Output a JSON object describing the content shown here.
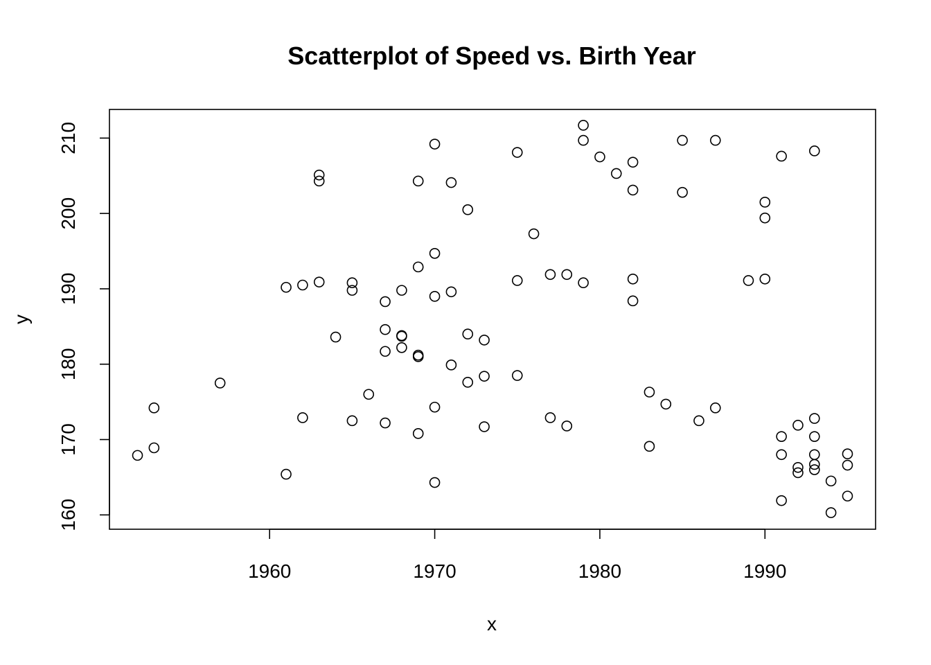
{
  "chart_data": {
    "type": "scatter",
    "title": "Scatterplot of Speed vs. Birth Year",
    "xlabel": "x",
    "ylabel": "y",
    "xlim": [
      1950.3,
      1996.7
    ],
    "ylim": [
      158.1,
      213.8
    ],
    "xticks": [
      1960,
      1970,
      1980,
      1990
    ],
    "yticks": [
      160,
      170,
      180,
      190,
      200,
      210
    ],
    "grid": false,
    "point_shape": "open-circle",
    "points": [
      {
        "x": 1952,
        "y": 167.9
      },
      {
        "x": 1953,
        "y": 174.2
      },
      {
        "x": 1953,
        "y": 168.9
      },
      {
        "x": 1957,
        "y": 177.5
      },
      {
        "x": 1961,
        "y": 190.2
      },
      {
        "x": 1961,
        "y": 165.4
      },
      {
        "x": 1962,
        "y": 190.5
      },
      {
        "x": 1962,
        "y": 172.9
      },
      {
        "x": 1963,
        "y": 205.1
      },
      {
        "x": 1963,
        "y": 204.3
      },
      {
        "x": 1963,
        "y": 190.9
      },
      {
        "x": 1964,
        "y": 183.6
      },
      {
        "x": 1965,
        "y": 190.8
      },
      {
        "x": 1965,
        "y": 189.8
      },
      {
        "x": 1965,
        "y": 172.5
      },
      {
        "x": 1966,
        "y": 176.0
      },
      {
        "x": 1967,
        "y": 188.3
      },
      {
        "x": 1967,
        "y": 184.6
      },
      {
        "x": 1967,
        "y": 181.7
      },
      {
        "x": 1967,
        "y": 172.2
      },
      {
        "x": 1968,
        "y": 189.8
      },
      {
        "x": 1968,
        "y": 183.8
      },
      {
        "x": 1968,
        "y": 183.7
      },
      {
        "x": 1968,
        "y": 182.2
      },
      {
        "x": 1969,
        "y": 204.3
      },
      {
        "x": 1969,
        "y": 192.9
      },
      {
        "x": 1969,
        "y": 181.2
      },
      {
        "x": 1969,
        "y": 181.0
      },
      {
        "x": 1969,
        "y": 170.8
      },
      {
        "x": 1970,
        "y": 209.2
      },
      {
        "x": 1970,
        "y": 194.7
      },
      {
        "x": 1970,
        "y": 189.0
      },
      {
        "x": 1970,
        "y": 174.3
      },
      {
        "x": 1970,
        "y": 164.3
      },
      {
        "x": 1971,
        "y": 204.1
      },
      {
        "x": 1971,
        "y": 189.6
      },
      {
        "x": 1971,
        "y": 179.9
      },
      {
        "x": 1972,
        "y": 200.5
      },
      {
        "x": 1972,
        "y": 184.0
      },
      {
        "x": 1972,
        "y": 177.6
      },
      {
        "x": 1973,
        "y": 183.2
      },
      {
        "x": 1973,
        "y": 178.4
      },
      {
        "x": 1973,
        "y": 171.7
      },
      {
        "x": 1975,
        "y": 208.1
      },
      {
        "x": 1975,
        "y": 191.1
      },
      {
        "x": 1975,
        "y": 178.5
      },
      {
        "x": 1976,
        "y": 197.3
      },
      {
        "x": 1977,
        "y": 191.9
      },
      {
        "x": 1977,
        "y": 172.9
      },
      {
        "x": 1978,
        "y": 191.9
      },
      {
        "x": 1978,
        "y": 171.8
      },
      {
        "x": 1979,
        "y": 211.7
      },
      {
        "x": 1979,
        "y": 209.7
      },
      {
        "x": 1979,
        "y": 190.8
      },
      {
        "x": 1980,
        "y": 207.5
      },
      {
        "x": 1981,
        "y": 205.3
      },
      {
        "x": 1982,
        "y": 206.8
      },
      {
        "x": 1982,
        "y": 203.1
      },
      {
        "x": 1982,
        "y": 191.3
      },
      {
        "x": 1982,
        "y": 188.4
      },
      {
        "x": 1983,
        "y": 176.3
      },
      {
        "x": 1983,
        "y": 169.1
      },
      {
        "x": 1984,
        "y": 174.7
      },
      {
        "x": 1985,
        "y": 209.7
      },
      {
        "x": 1985,
        "y": 202.8
      },
      {
        "x": 1986,
        "y": 172.5
      },
      {
        "x": 1987,
        "y": 209.7
      },
      {
        "x": 1987,
        "y": 174.2
      },
      {
        "x": 1989,
        "y": 191.1
      },
      {
        "x": 1990,
        "y": 201.5
      },
      {
        "x": 1990,
        "y": 199.4
      },
      {
        "x": 1990,
        "y": 191.3
      },
      {
        "x": 1991,
        "y": 207.6
      },
      {
        "x": 1991,
        "y": 170.4
      },
      {
        "x": 1991,
        "y": 168.0
      },
      {
        "x": 1991,
        "y": 161.9
      },
      {
        "x": 1992,
        "y": 171.9
      },
      {
        "x": 1992,
        "y": 166.3
      },
      {
        "x": 1992,
        "y": 165.6
      },
      {
        "x": 1993,
        "y": 208.3
      },
      {
        "x": 1993,
        "y": 172.8
      },
      {
        "x": 1993,
        "y": 170.4
      },
      {
        "x": 1993,
        "y": 168.0
      },
      {
        "x": 1993,
        "y": 166.7
      },
      {
        "x": 1993,
        "y": 166.0
      },
      {
        "x": 1994,
        "y": 164.5
      },
      {
        "x": 1994,
        "y": 160.3
      },
      {
        "x": 1995,
        "y": 168.1
      },
      {
        "x": 1995,
        "y": 166.6
      },
      {
        "x": 1995,
        "y": 162.5
      }
    ]
  }
}
